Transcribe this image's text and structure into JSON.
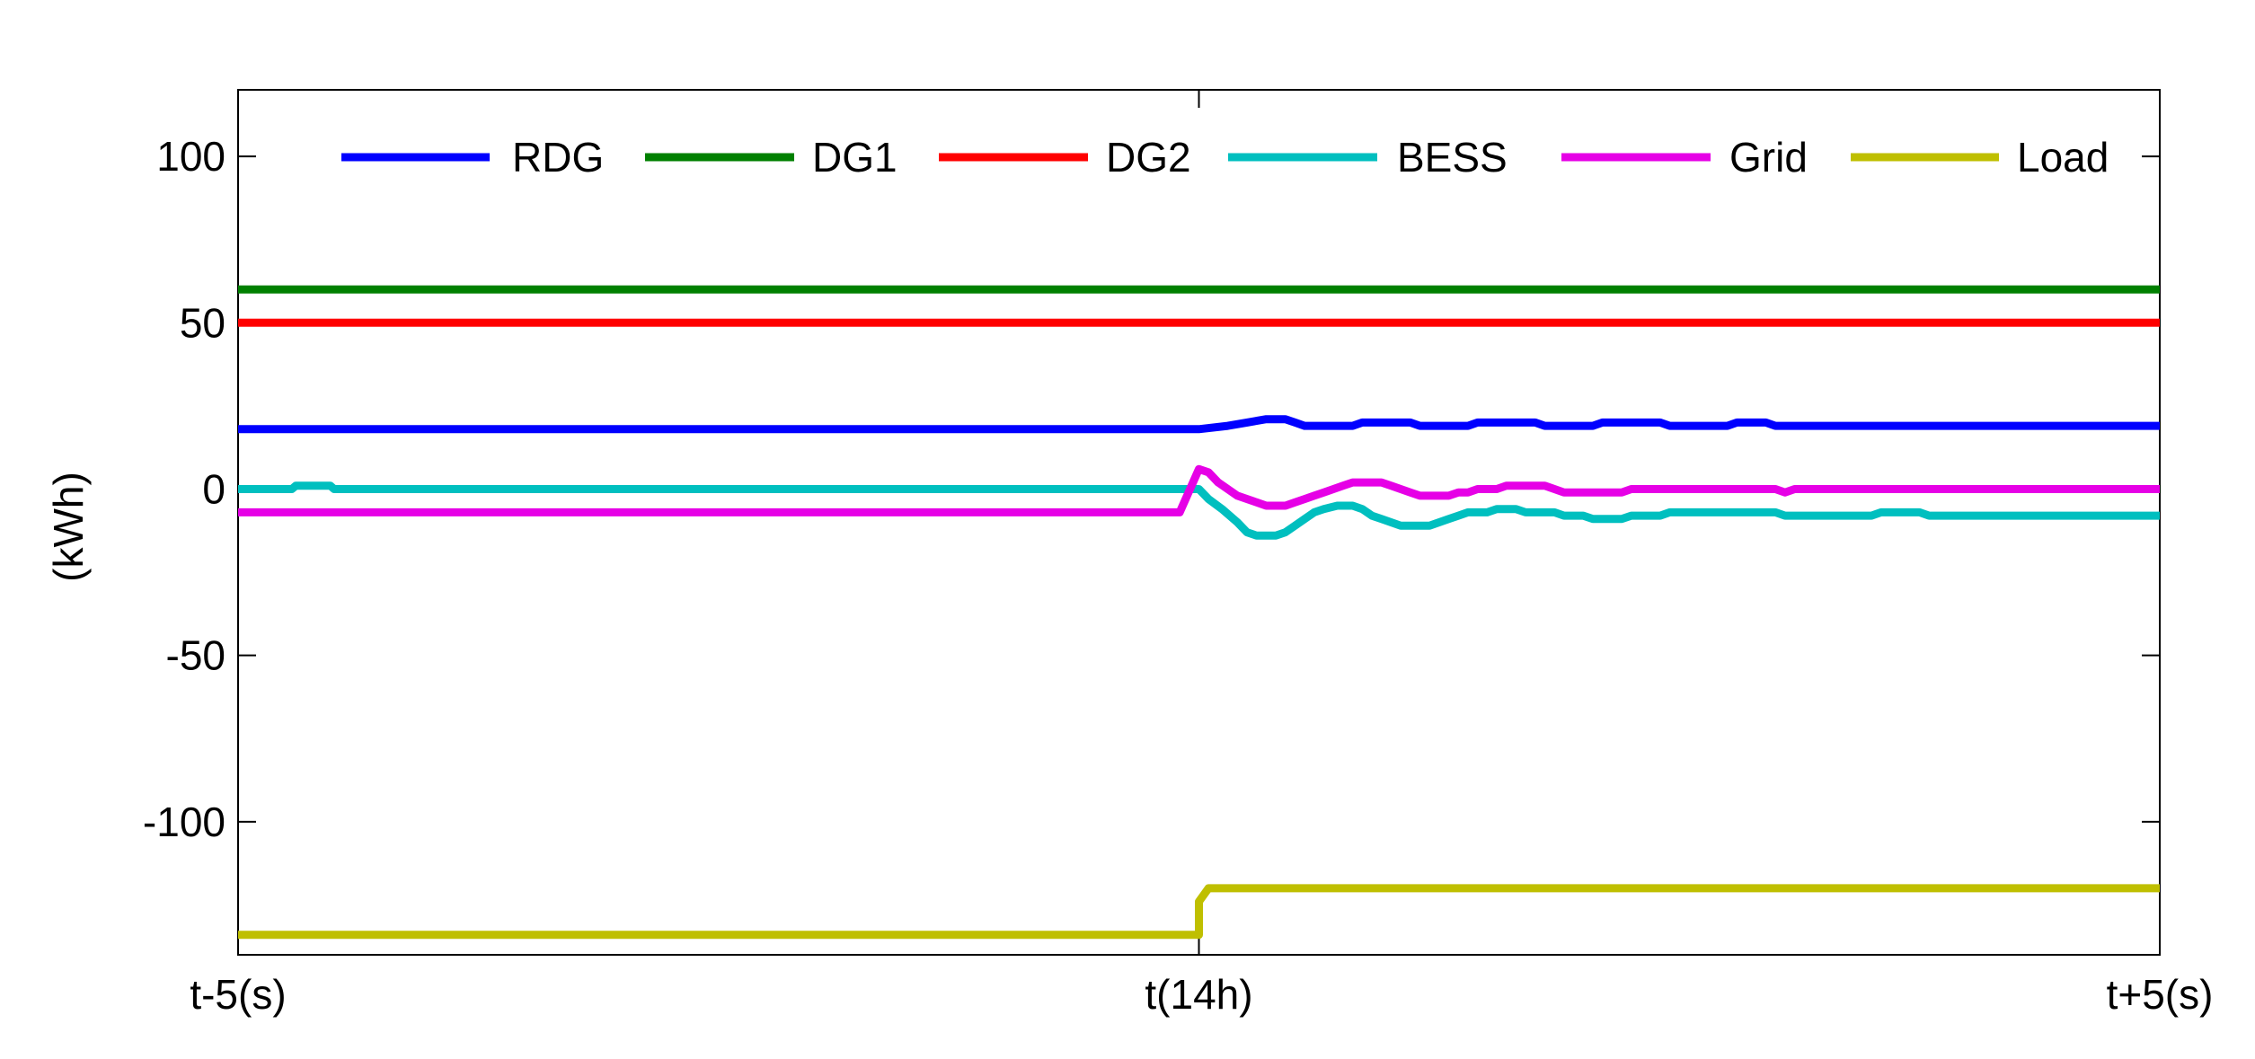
{
  "chart_data": {
    "type": "line",
    "title": "",
    "xlabel": "",
    "ylabel": "(kWh)",
    "xlim": [
      -5,
      5
    ],
    "ylim": [
      -140,
      120
    ],
    "x_ticks": [
      {
        "value": -5,
        "label": "t-5(s)"
      },
      {
        "value": 0,
        "label": "t(14h)"
      },
      {
        "value": 5,
        "label": "t+5(s)"
      }
    ],
    "y_ticks": [
      {
        "value": 100,
        "label": "100"
      },
      {
        "value": 50,
        "label": "50"
      },
      {
        "value": 0,
        "label": "0"
      },
      {
        "value": -50,
        "label": "-50"
      },
      {
        "value": -100,
        "label": "-100"
      }
    ],
    "grid": false,
    "legend_position": "top",
    "series": [
      {
        "name": "RDG",
        "color": "#0000ff",
        "points": [
          [
            -5,
            18
          ],
          [
            0,
            18
          ],
          [
            0.15,
            19
          ],
          [
            0.25,
            20
          ],
          [
            0.35,
            21
          ],
          [
            0.45,
            21
          ],
          [
            0.5,
            20
          ],
          [
            0.55,
            19
          ],
          [
            0.8,
            19
          ],
          [
            0.85,
            20
          ],
          [
            1.1,
            20
          ],
          [
            1.15,
            19
          ],
          [
            1.4,
            19
          ],
          [
            1.45,
            20
          ],
          [
            1.75,
            20
          ],
          [
            1.8,
            19
          ],
          [
            2.05,
            19
          ],
          [
            2.1,
            20
          ],
          [
            2.4,
            20
          ],
          [
            2.45,
            19
          ],
          [
            2.75,
            19
          ],
          [
            2.8,
            20
          ],
          [
            2.95,
            20
          ],
          [
            3.0,
            19
          ],
          [
            5,
            19
          ]
        ]
      },
      {
        "name": "DG1",
        "color": "#008000",
        "points": [
          [
            -5,
            60
          ],
          [
            5,
            60
          ]
        ]
      },
      {
        "name": "DG2",
        "color": "#ff0000",
        "points": [
          [
            -5,
            50
          ],
          [
            5,
            50
          ]
        ]
      },
      {
        "name": "BESS",
        "color": "#00bfbf",
        "points": [
          [
            -5,
            0
          ],
          [
            -4.72,
            0
          ],
          [
            -4.7,
            1
          ],
          [
            -4.52,
            1
          ],
          [
            -4.5,
            0
          ],
          [
            0,
            0
          ],
          [
            0.05,
            -3
          ],
          [
            0.12,
            -6
          ],
          [
            0.2,
            -10
          ],
          [
            0.25,
            -13
          ],
          [
            0.3,
            -14
          ],
          [
            0.4,
            -14
          ],
          [
            0.45,
            -13
          ],
          [
            0.5,
            -11
          ],
          [
            0.55,
            -9
          ],
          [
            0.6,
            -7
          ],
          [
            0.65,
            -6
          ],
          [
            0.72,
            -5
          ],
          [
            0.8,
            -5
          ],
          [
            0.85,
            -6
          ],
          [
            0.9,
            -8
          ],
          [
            0.95,
            -9
          ],
          [
            1.0,
            -10
          ],
          [
            1.05,
            -11
          ],
          [
            1.2,
            -11
          ],
          [
            1.25,
            -10
          ],
          [
            1.3,
            -9
          ],
          [
            1.35,
            -8
          ],
          [
            1.4,
            -7
          ],
          [
            1.45,
            -7
          ],
          [
            1.5,
            -7
          ],
          [
            1.55,
            -6
          ],
          [
            1.65,
            -6
          ],
          [
            1.7,
            -7
          ],
          [
            1.85,
            -7
          ],
          [
            1.9,
            -8
          ],
          [
            2.0,
            -8
          ],
          [
            2.05,
            -9
          ],
          [
            2.2,
            -9
          ],
          [
            2.25,
            -8
          ],
          [
            2.4,
            -8
          ],
          [
            2.45,
            -7
          ],
          [
            3.0,
            -7
          ],
          [
            3.05,
            -8
          ],
          [
            3.5,
            -8
          ],
          [
            3.55,
            -7
          ],
          [
            3.75,
            -7
          ],
          [
            3.8,
            -8
          ],
          [
            5,
            -8
          ]
        ]
      },
      {
        "name": "Grid",
        "color": "#e600e6",
        "points": [
          [
            -5,
            -7
          ],
          [
            -0.1,
            -7
          ],
          [
            0,
            6
          ],
          [
            0.05,
            5
          ],
          [
            0.1,
            2
          ],
          [
            0.2,
            -2
          ],
          [
            0.3,
            -4
          ],
          [
            0.35,
            -5
          ],
          [
            0.45,
            -5
          ],
          [
            0.5,
            -4
          ],
          [
            0.55,
            -3
          ],
          [
            0.6,
            -2
          ],
          [
            0.65,
            -1
          ],
          [
            0.7,
            0
          ],
          [
            0.75,
            1
          ],
          [
            0.8,
            2
          ],
          [
            0.95,
            2
          ],
          [
            1.0,
            1
          ],
          [
            1.05,
            0
          ],
          [
            1.1,
            -1
          ],
          [
            1.15,
            -2
          ],
          [
            1.3,
            -2
          ],
          [
            1.35,
            -1
          ],
          [
            1.4,
            -1
          ],
          [
            1.45,
            0
          ],
          [
            1.55,
            0
          ],
          [
            1.6,
            1
          ],
          [
            1.8,
            1
          ],
          [
            1.85,
            0
          ],
          [
            1.9,
            -1
          ],
          [
            2.2,
            -1
          ],
          [
            2.25,
            0
          ],
          [
            3.0,
            0
          ],
          [
            3.05,
            -1
          ],
          [
            3.1,
            0
          ],
          [
            5,
            0
          ]
        ]
      },
      {
        "name": "Load",
        "color": "#bfbf00",
        "points": [
          [
            -5,
            -134
          ],
          [
            0,
            -134
          ],
          [
            0,
            -124
          ],
          [
            0.05,
            -120
          ],
          [
            5,
            -120
          ]
        ]
      }
    ]
  }
}
